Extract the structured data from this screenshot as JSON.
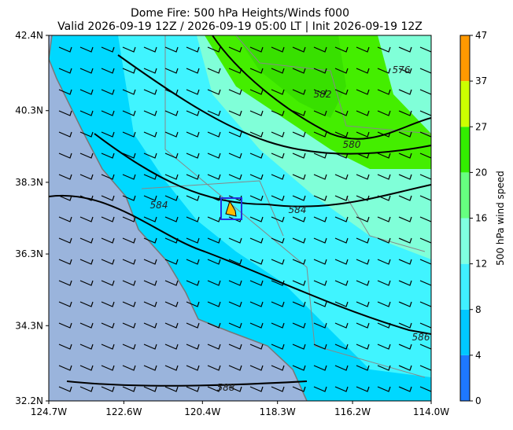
{
  "chart_data": {
    "type": "map",
    "title": "Dome Fire: 500 hPa Heights/Winds f000",
    "subtitle": "Valid 2026-09-19 12Z / 2026-09-19 05:00 LT | Init 2026-09-19 12Z",
    "xlim": [
      -124.7,
      -114.0
    ],
    "ylim": [
      32.2,
      42.4
    ],
    "xticks": [
      {
        "value": -124.7,
        "label": "124.7W"
      },
      {
        "value": -122.6,
        "label": "122.6W"
      },
      {
        "value": -120.4,
        "label": "120.4W"
      },
      {
        "value": -118.3,
        "label": "118.3W"
      },
      {
        "value": -116.2,
        "label": "116.2W"
      },
      {
        "value": -114.0,
        "label": "114.0W"
      }
    ],
    "yticks": [
      {
        "value": 32.2,
        "label": "32.2N"
      },
      {
        "value": 34.3,
        "label": "34.3N"
      },
      {
        "value": 36.3,
        "label": "36.3N"
      },
      {
        "value": 38.3,
        "label": "38.3N"
      },
      {
        "value": 40.3,
        "label": "40.3N"
      },
      {
        "value": 42.4,
        "label": "42.4N"
      }
    ],
    "contour_labels": [
      "576",
      "582",
      "580",
      "584",
      "584",
      "586",
      "588"
    ],
    "colorbar": {
      "label": "500 hPa wind speed",
      "ticks": [
        0,
        4,
        8,
        12,
        16,
        20,
        27,
        37,
        47
      ],
      "colors": [
        "#1e78ff",
        "#00c8ff",
        "#40f0ff",
        "#80ffe0",
        "#66ff80",
        "#33ee00",
        "#ccff00",
        "#ff9900"
      ]
    }
  }
}
